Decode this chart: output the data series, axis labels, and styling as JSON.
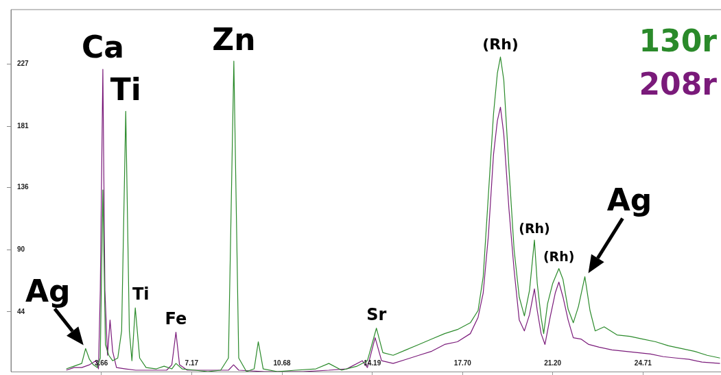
{
  "chart_data": {
    "type": "line",
    "marker": "none",
    "grid": false,
    "legend": "top right",
    "xlim": [
      0.15,
      27.74
    ],
    "ylim": [
      0,
      267
    ],
    "xticks": [
      3.66,
      7.17,
      10.68,
      14.19,
      {
        "value": 17.7,
        "label": "17.70"
      },
      {
        "value": 21.2,
        "label": "21.20"
      },
      24.71
    ],
    "yticks": [
      44,
      90,
      136,
      181,
      227
    ],
    "series": [
      {
        "name": "130r",
        "color": "#2a8a2a",
        "x": [
          2.3,
          2.6,
          2.9,
          3.05,
          3.2,
          3.35,
          3.5,
          3.62,
          3.72,
          3.82,
          3.95,
          4.1,
          4.3,
          4.45,
          4.61,
          4.75,
          4.85,
          4.98,
          5.15,
          5.4,
          5.8,
          6.1,
          6.4,
          6.56,
          6.8,
          7.3,
          7.8,
          8.3,
          8.6,
          8.81,
          9.0,
          9.3,
          9.6,
          9.76,
          9.95,
          10.5,
          11.2,
          12.0,
          12.5,
          13.0,
          13.6,
          14.0,
          14.35,
          14.6,
          15.0,
          15.5,
          16.0,
          16.5,
          17.0,
          17.5,
          18.0,
          18.3,
          18.5,
          18.7,
          18.9,
          19.05,
          19.17,
          19.3,
          19.5,
          19.7,
          19.9,
          20.1,
          20.3,
          20.49,
          20.6,
          20.75,
          20.85,
          21.0,
          21.2,
          21.44,
          21.6,
          21.8,
          22.0,
          22.2,
          22.45,
          22.65,
          22.85,
          23.2,
          23.7,
          24.2,
          24.7,
          25.2,
          25.7,
          26.2,
          26.7,
          27.2,
          27.7
        ],
        "values": [
          2,
          4,
          6,
          17,
          9,
          5,
          3,
          10,
          134,
          20,
          12,
          8,
          10,
          30,
          192,
          30,
          8,
          47,
          10,
          3,
          2,
          4,
          2,
          6,
          2,
          1,
          0,
          1,
          10,
          229,
          10,
          0,
          2,
          22,
          2,
          0,
          1,
          2,
          6,
          1,
          4,
          8,
          32,
          14,
          12,
          16,
          20,
          24,
          28,
          31,
          36,
          45,
          70,
          130,
          190,
          220,
          232,
          215,
          150,
          90,
          55,
          41,
          60,
          97,
          65,
          40,
          28,
          50,
          65,
          76,
          68,
          46,
          36,
          48,
          70,
          45,
          30,
          33,
          27,
          26,
          24,
          22,
          19,
          17,
          15,
          12,
          10
        ]
      },
      {
        "name": "208r",
        "color": "#7a1a7a",
        "x": [
          2.3,
          2.6,
          2.9,
          3.2,
          3.45,
          3.55,
          3.62,
          3.72,
          3.8,
          3.9,
          4.0,
          4.1,
          4.25,
          4.6,
          5.0,
          5.5,
          6.2,
          6.4,
          6.56,
          6.7,
          7.0,
          7.8,
          8.6,
          8.8,
          9.0,
          10.0,
          11.5,
          12.5,
          13.2,
          13.8,
          14.0,
          14.3,
          14.55,
          15.0,
          15.5,
          16.0,
          16.5,
          17.0,
          17.5,
          18.0,
          18.3,
          18.5,
          18.7,
          18.9,
          19.05,
          19.17,
          19.3,
          19.5,
          19.7,
          19.9,
          20.1,
          20.3,
          20.49,
          20.6,
          20.75,
          20.9,
          21.1,
          21.3,
          21.44,
          21.6,
          21.8,
          22.0,
          22.3,
          22.6,
          23.0,
          23.5,
          24.0,
          24.5,
          25.0,
          25.5,
          26.0,
          26.5,
          27.0,
          27.7
        ],
        "values": [
          1,
          3,
          3,
          5,
          8,
          2,
          60,
          223,
          60,
          12,
          38,
          15,
          3,
          2,
          1,
          1,
          1,
          5,
          29,
          5,
          1,
          1,
          1,
          5,
          1,
          0,
          0,
          1,
          2,
          8,
          3,
          25,
          8,
          6,
          9,
          12,
          15,
          20,
          22,
          28,
          40,
          58,
          100,
          160,
          185,
          195,
          175,
          120,
          75,
          38,
          30,
          42,
          61,
          45,
          28,
          20,
          40,
          58,
          66,
          55,
          38,
          25,
          24,
          20,
          18,
          16,
          15,
          14,
          13,
          11,
          10,
          9,
          7,
          6
        ]
      }
    ],
    "annotations": [
      {
        "text": "Ca",
        "x": 3.72,
        "y": 223
      },
      {
        "text": "Ti",
        "x": 4.61,
        "y": 192
      },
      {
        "text": "Zn",
        "x": 8.81,
        "y": 229
      },
      {
        "text": "(Rh)",
        "x": 19.17,
        "y": 232
      },
      {
        "text": "(Rh)",
        "x": 20.49,
        "y": 97
      },
      {
        "text": "(Rh)",
        "x": 21.44,
        "y": 76
      },
      {
        "text": "Ti",
        "x": 4.98,
        "y": 47
      },
      {
        "text": "Fe",
        "x": 6.56,
        "y": 29
      },
      {
        "text": "Sr",
        "x": 14.35,
        "y": 32
      },
      {
        "text": "Ag",
        "x": 3.05,
        "y": 17
      },
      {
        "text": "Ag",
        "x": 22.45,
        "y": 70
      }
    ]
  }
}
